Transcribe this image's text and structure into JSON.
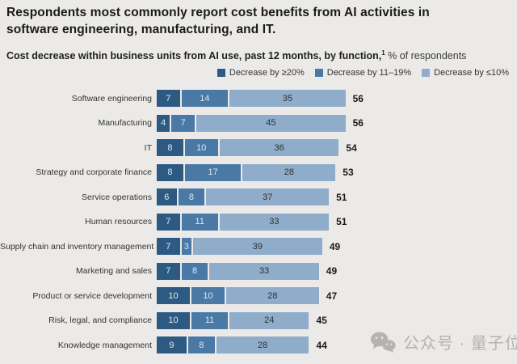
{
  "title": {
    "line1": "Respondents most commonly report cost benefits from AI activities in",
    "line2": "software engineering, manufacturing, and IT."
  },
  "subtitle": {
    "bold_part": "Cost decrease within business units from AI use, past 12 months, by function,",
    "footnote_marker": "1",
    "rest": " % of respondents"
  },
  "colors": {
    "background": "#ebeae8",
    "segment_dark": "#2d5a82",
    "segment_medium": "#4a79a6",
    "segment_light": "#8fadcb",
    "segment_text_light": "#dde8f1",
    "segment_text_dark": "#2f2f2f",
    "watermark": "#b4b3b1"
  },
  "chart_data": {
    "type": "bar",
    "orientation": "horizontal",
    "stacked": true,
    "value_unit": "% of respondents",
    "categories": [
      "Software engineering",
      "Manufacturing",
      "IT",
      "Strategy and corporate finance",
      "Service operations",
      "Human resources",
      "Supply chain and inventory management",
      "Marketing and sales",
      "Product or service development",
      "Risk, legal, and compliance",
      "Knowledge management"
    ],
    "series": [
      {
        "name": "Decrease by ≥20%",
        "color": "#2d5a82",
        "values": [
          7,
          4,
          8,
          8,
          6,
          7,
          7,
          7,
          10,
          10,
          9
        ]
      },
      {
        "name": "Decrease by 11–19%",
        "color": "#4a79a6",
        "values": [
          14,
          7,
          10,
          17,
          8,
          11,
          3,
          8,
          10,
          11,
          8
        ]
      },
      {
        "name": "Decrease by ≤10%",
        "color": "#8fadcb",
        "values": [
          35,
          45,
          36,
          28,
          37,
          33,
          39,
          33,
          28,
          24,
          28
        ]
      }
    ],
    "totals": [
      56,
      56,
      54,
      53,
      51,
      51,
      49,
      49,
      47,
      45,
      44
    ],
    "xlim": [
      0,
      56
    ],
    "legend_position": "top-right",
    "grid": false
  },
  "watermark": {
    "icon": "wechat-icon",
    "text": "公众号 · 量子位"
  }
}
